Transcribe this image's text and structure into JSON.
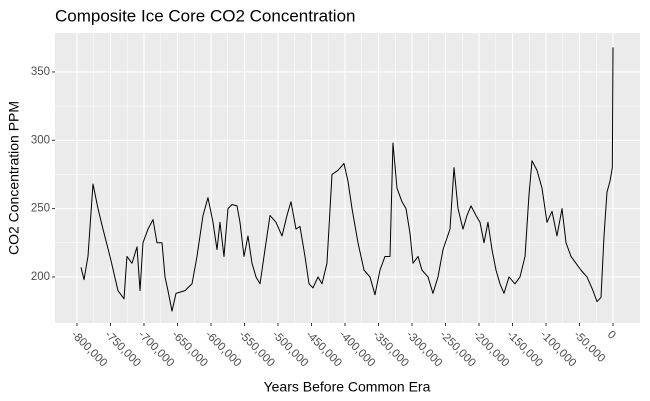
{
  "chart_data": {
    "type": "line",
    "title": "Composite Ice Core CO2 Concentration",
    "x_label": "Years Before Common Era",
    "y_label": "CO2 Concentration PPM",
    "color": "#000000",
    "grid": true,
    "xlim": [
      -832800,
      40300
    ],
    "ylim": [
      166.3,
      378.5
    ],
    "xticks": [
      {
        "value": -800000,
        "label": "-800,000"
      },
      {
        "value": -750000,
        "label": "-750,000"
      },
      {
        "value": -700000,
        "label": "-700,000"
      },
      {
        "value": -650000,
        "label": "-650,000"
      },
      {
        "value": -600000,
        "label": "-600,000"
      },
      {
        "value": -550000,
        "label": "-550,000"
      },
      {
        "value": -500000,
        "label": "-500,000"
      },
      {
        "value": -450000,
        "label": "-450,000"
      },
      {
        "value": -400000,
        "label": "-400,000"
      },
      {
        "value": -350000,
        "label": "-350,000"
      },
      {
        "value": -300000,
        "label": "-300,000"
      },
      {
        "value": -250000,
        "label": "-250,000"
      },
      {
        "value": -200000,
        "label": "-200,000"
      },
      {
        "value": -150000,
        "label": "-150,000"
      },
      {
        "value": -100000,
        "label": "-100,000"
      },
      {
        "value": -50000,
        "label": "-50,000"
      },
      0
    ],
    "yticks": [
      200,
      250,
      300,
      350
    ],
    "x": [
      -794000,
      -789500,
      -783600,
      -776100,
      -768600,
      -761200,
      -750700,
      -738800,
      -729800,
      -725400,
      -717900,
      -710400,
      -705900,
      -701500,
      -694000,
      -686500,
      -680600,
      -673100,
      -668600,
      -664200,
      -658200,
      -652200,
      -638800,
      -628300,
      -620900,
      -611900,
      -604500,
      -597000,
      -591000,
      -586600,
      -580600,
      -574600,
      -568600,
      -561200,
      -556700,
      -550700,
      -544800,
      -538800,
      -532800,
      -526800,
      -519400,
      -511900,
      -503000,
      -494000,
      -486600,
      -480600,
      -473100,
      -467200,
      -459700,
      -453700,
      -447800,
      -440300,
      -434300,
      -426900,
      -419400,
      -410400,
      -401500,
      -395500,
      -389500,
      -380600,
      -371600,
      -362700,
      -355200,
      -347800,
      -340300,
      -332800,
      -328400,
      -322400,
      -314900,
      -308900,
      -303000,
      -298500,
      -291000,
      -285100,
      -276100,
      -268700,
      -261200,
      -253700,
      -243300,
      -237300,
      -231300,
      -223900,
      -217900,
      -211900,
      -204500,
      -198500,
      -192500,
      -186600,
      -180600,
      -174600,
      -168700,
      -162700,
      -155200,
      -146300,
      -138800,
      -131300,
      -125400,
      -120900,
      -113400,
      -106000,
      -98500,
      -91000,
      -83600,
      -76100,
      -70100,
      -62700,
      -55200,
      -47800,
      -38800,
      -29900,
      -23900,
      -17900,
      -13400,
      -9000,
      -4500,
      -1000,
      0
    ],
    "values": [
      207,
      198,
      215,
      268,
      250,
      235,
      215,
      190,
      184,
      215,
      210,
      222,
      190,
      225,
      235,
      242,
      225,
      225,
      200,
      190,
      175,
      188,
      190,
      195,
      215,
      245,
      258,
      240,
      220,
      240,
      215,
      250,
      253,
      252,
      240,
      215,
      230,
      210,
      200,
      195,
      220,
      245,
      240,
      230,
      245,
      255,
      235,
      237,
      215,
      195,
      192,
      200,
      195,
      210,
      275,
      278,
      283,
      270,
      250,
      225,
      205,
      200,
      187,
      205,
      215,
      215,
      298,
      265,
      255,
      250,
      232,
      210,
      215,
      205,
      200,
      188,
      200,
      220,
      235,
      280,
      250,
      235,
      245,
      252,
      245,
      240,
      225,
      240,
      220,
      205,
      195,
      188,
      200,
      195,
      200,
      215,
      260,
      285,
      278,
      265,
      240,
      248,
      230,
      250,
      225,
      215,
      210,
      205,
      200,
      190,
      182,
      185,
      230,
      262,
      270,
      280,
      368
    ]
  }
}
